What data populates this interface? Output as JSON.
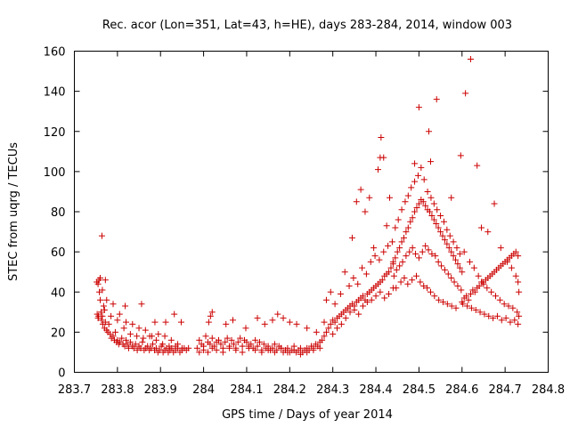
{
  "chart_data": {
    "type": "scatter",
    "title": "Rec. acor (Lon=351, Lat=43, h=HE), days 283-284, 2014, window 003",
    "xlabel": "GPS time / Days of year 2014",
    "ylabel": "STEC from uqrg / TECUs",
    "xlim": [
      283.7,
      284.8
    ],
    "ylim": [
      0,
      160
    ],
    "x_ticks": [
      283.7,
      283.8,
      283.9,
      284,
      284.1,
      284.2,
      284.3,
      284.4,
      284.5,
      284.6,
      284.7,
      284.8
    ],
    "x_tick_labels": [
      "283.7",
      "283.8",
      "283.9",
      "284",
      "284.1",
      "284.2",
      "284.3",
      "284.4",
      "284.5",
      "284.6",
      "284.7",
      "284.8"
    ],
    "y_ticks": [
      0,
      20,
      40,
      60,
      80,
      100,
      120,
      140,
      160
    ],
    "y_tick_labels": [
      "0",
      "20",
      "40",
      "60",
      "80",
      "100",
      "120",
      "140",
      "160"
    ],
    "grid": false,
    "marker": "plus",
    "marker_color": "#cc0000",
    "series": [
      {
        "x": [
          283.752,
          283.753,
          283.755,
          283.756,
          283.757,
          283.76,
          283.762,
          283.763,
          283.765,
          283.766,
          283.768,
          283.77,
          283.772,
          283.775,
          283.778,
          283.78,
          283.783,
          283.786,
          283.79,
          283.793,
          283.795,
          283.798,
          283.8,
          283.803,
          283.806,
          283.81,
          283.813,
          283.817,
          283.82,
          283.823,
          283.826,
          283.83,
          283.834,
          283.838,
          283.842,
          283.846,
          283.85,
          283.854,
          283.858,
          283.862,
          283.866,
          283.87,
          283.874,
          283.878,
          283.882,
          283.886,
          283.89,
          283.894,
          283.898,
          283.902,
          283.906,
          283.91,
          283.914,
          283.918,
          283.922,
          283.926,
          283.93,
          283.935,
          283.94,
          283.945,
          283.95,
          283.955,
          283.96,
          283.965,
          283.755,
          283.765,
          283.775,
          283.79,
          283.805,
          283.82,
          283.835,
          283.85,
          283.865,
          283.88,
          283.895,
          283.91,
          283.925,
          283.94,
          283.76,
          283.77,
          283.785,
          283.8,
          283.815,
          283.83,
          283.845,
          283.86,
          283.875,
          283.89,
          283.905,
          283.92,
          283.935,
          283.95,
          283.764,
          283.772,
          283.758,
          283.818,
          283.856,
          283.887,
          283.912,
          283.932,
          283.948,
          283.985,
          283.99,
          283.995,
          284.0,
          284.005,
          284.01,
          284.015,
          284.02,
          284.025,
          284.03,
          284.035,
          284.04,
          284.045,
          284.05,
          284.055,
          284.06,
          284.065,
          284.07,
          284.075,
          284.08,
          284.085,
          284.09,
          284.095,
          284.1,
          284.105,
          284.11,
          284.115,
          284.12,
          284.125,
          284.13,
          284.135,
          284.14,
          284.145,
          284.15,
          284.155,
          284.16,
          284.165,
          284.17,
          284.175,
          284.18,
          284.185,
          284.19,
          284.195,
          284.2,
          284.205,
          284.21,
          284.215,
          284.22,
          284.225,
          284.23,
          284.235,
          284.24,
          284.245,
          284.25,
          284.255,
          284.26,
          284.265,
          284.27,
          283.99,
          284.0,
          284.01,
          284.02,
          284.03,
          284.045,
          284.06,
          284.075,
          284.09,
          284.105,
          284.12,
          284.135,
          284.15,
          284.165,
          284.18,
          284.195,
          284.21,
          284.225,
          284.24,
          284.255,
          284.27,
          284.012,
          284.016,
          284.02,
          284.052,
          284.068,
          284.098,
          284.125,
          284.142,
          284.16,
          284.172,
          284.185,
          284.2,
          284.216,
          284.24,
          284.262,
          284.28,
          284.275,
          284.28,
          284.285,
          284.29,
          284.295,
          284.3,
          284.305,
          284.31,
          284.315,
          284.32,
          284.325,
          284.33,
          284.335,
          284.34,
          284.345,
          284.35,
          284.355,
          284.36,
          284.365,
          284.37,
          284.375,
          284.38,
          284.385,
          284.39,
          284.395,
          284.4,
          284.405,
          284.41,
          284.415,
          284.42,
          284.425,
          284.43,
          284.435,
          284.44,
          284.3,
          284.31,
          284.32,
          284.33,
          284.34,
          284.35,
          284.36,
          284.37,
          284.38,
          284.39,
          284.4,
          284.41,
          284.42,
          284.43,
          284.44,
          284.285,
          284.295,
          284.305,
          284.318,
          284.328,
          284.338,
          284.348,
          284.358,
          284.368,
          284.378,
          284.388,
          284.398,
          284.408,
          284.418,
          284.428,
          284.438,
          284.345,
          284.355,
          284.365,
          284.375,
          284.385,
          284.395,
          284.405,
          284.41,
          284.412,
          284.418,
          284.425,
          284.432,
          284.44,
          284.445,
          284.45,
          284.455,
          284.46,
          284.465,
          284.47,
          284.475,
          284.48,
          284.485,
          284.49,
          284.495,
          284.5,
          284.505,
          284.51,
          284.515,
          284.52,
          284.525,
          284.53,
          284.535,
          284.54,
          284.545,
          284.55,
          284.555,
          284.56,
          284.565,
          284.57,
          284.575,
          284.58,
          284.585,
          284.59,
          284.595,
          284.6,
          284.442,
          284.448,
          284.455,
          284.462,
          284.47,
          284.478,
          284.485,
          284.492,
          284.5,
          284.508,
          284.515,
          284.522,
          284.53,
          284.538,
          284.545,
          284.552,
          284.56,
          284.568,
          284.575,
          284.582,
          284.59,
          284.598,
          284.445,
          284.452,
          284.46,
          284.468,
          284.475,
          284.482,
          284.49,
          284.498,
          284.505,
          284.512,
          284.52,
          284.528,
          284.535,
          284.542,
          284.55,
          284.558,
          284.565,
          284.572,
          284.58,
          284.588,
          284.595,
          284.447,
          284.458,
          284.466,
          284.474,
          284.484,
          284.494,
          284.503,
          284.511,
          284.519,
          284.527,
          284.536,
          284.546,
          284.556,
          284.566,
          284.576,
          284.586,
          284.49,
          284.5,
          284.523,
          284.527,
          284.541,
          284.575,
          284.597,
          284.608,
          284.62,
          284.635,
          284.6,
          284.605,
          284.61,
          284.615,
          284.62,
          284.625,
          284.63,
          284.635,
          284.64,
          284.645,
          284.65,
          284.655,
          284.66,
          284.665,
          284.67,
          284.675,
          284.68,
          284.685,
          284.69,
          284.695,
          284.7,
          284.705,
          284.71,
          284.715,
          284.72,
          284.725,
          284.73,
          284.602,
          284.612,
          284.622,
          284.632,
          284.642,
          284.652,
          284.662,
          284.672,
          284.682,
          284.692,
          284.702,
          284.712,
          284.722,
          284.73,
          284.605,
          284.618,
          284.628,
          284.638,
          284.648,
          284.658,
          284.668,
          284.678,
          284.688,
          284.698,
          284.708,
          284.718,
          284.728,
          284.732,
          284.645,
          284.66,
          284.675,
          284.69,
          284.705,
          284.715,
          284.725,
          284.73,
          284.732
        ],
        "y": [
          45,
          29,
          27,
          28,
          46,
          47,
          30,
          26,
          28,
          24,
          33,
          22,
          25,
          21,
          20,
          24,
          19,
          17,
          18,
          16,
          20,
          15,
          16,
          14,
          15,
          17,
          14,
          13,
          16,
          14,
          12,
          15,
          13,
          12,
          14,
          11,
          13,
          12,
          15,
          11,
          12,
          13,
          11,
          12,
          14,
          11,
          12,
          10,
          11,
          13,
          10,
          11,
          12,
          10,
          11,
          12,
          10,
          11,
          12,
          10,
          11,
          12,
          11,
          12,
          44,
          41,
          36,
          34,
          29,
          25,
          24,
          22,
          21,
          18,
          19,
          18,
          16,
          14,
          36,
          31,
          28,
          26,
          22,
          19,
          18,
          17,
          18,
          16,
          14,
          13,
          13,
          12,
          68,
          46,
          40,
          33,
          34,
          25,
          25,
          29,
          25,
          12,
          16,
          14,
          13,
          18,
          15,
          14,
          17,
          13,
          15,
          16,
          14,
          12,
          15,
          17,
          13,
          16,
          14,
          12,
          15,
          17,
          13,
          16,
          15,
          13,
          14,
          12,
          16,
          13,
          15,
          11,
          14,
          12,
          13,
          11,
          12,
          14,
          11,
          13,
          12,
          10,
          11,
          12,
          10,
          11,
          13,
          10,
          11,
          12,
          10,
          11,
          12,
          11,
          13,
          12,
          14,
          13,
          15,
          10,
          11,
          10,
          12,
          11,
          10,
          12,
          11,
          10,
          12,
          11,
          10,
          11,
          10,
          12,
          10,
          11,
          9,
          10,
          11,
          12,
          25,
          28,
          30,
          24,
          26,
          22,
          27,
          24,
          26,
          29,
          27,
          25,
          24,
          22,
          20,
          25,
          16,
          18,
          20,
          22,
          24,
          26,
          25,
          27,
          28,
          29,
          30,
          31,
          32,
          33,
          34,
          33,
          35,
          36,
          37,
          38,
          36,
          39,
          40,
          41,
          42,
          43,
          44,
          45,
          46,
          48,
          49,
          50,
          52,
          54,
          19,
          22,
          24,
          27,
          30,
          31,
          29,
          33,
          35,
          36,
          38,
          40,
          37,
          39,
          42,
          36,
          40,
          34,
          39,
          50,
          43,
          47,
          44,
          52,
          49,
          55,
          58,
          56,
          60,
          63,
          65,
          67,
          85,
          91,
          80,
          87,
          62,
          101,
          107,
          117,
          107,
          73,
          87,
          55,
          57,
          60,
          62,
          65,
          67,
          70,
          72,
          75,
          77,
          80,
          82,
          84,
          86,
          85,
          83,
          81,
          80,
          78,
          76,
          74,
          72,
          70,
          68,
          66,
          64,
          62,
          60,
          58,
          56,
          54,
          52,
          50,
          48,
          51,
          53,
          55,
          58,
          60,
          62,
          59,
          57,
          60,
          63,
          61,
          59,
          58,
          55,
          53,
          51,
          49,
          47,
          45,
          43,
          41,
          72,
          76,
          81,
          85,
          88,
          92,
          95,
          98,
          102,
          96,
          90,
          87,
          84,
          81,
          78,
          75,
          71,
          68,
          65,
          62,
          59,
          42,
          45,
          47,
          44,
          46,
          48,
          45,
          43,
          42,
          40,
          38,
          36,
          35,
          34,
          33,
          32,
          104,
          132,
          120,
          105,
          136,
          87,
          108,
          139,
          156,
          103,
          35,
          37,
          38,
          36,
          39,
          41,
          40,
          42,
          43,
          45,
          44,
          46,
          47,
          48,
          49,
          50,
          51,
          52,
          53,
          54,
          55,
          56,
          57,
          58,
          59,
          60,
          58,
          34,
          33,
          32,
          31,
          30,
          29,
          28,
          27,
          28,
          26,
          27,
          25,
          26,
          24,
          60,
          55,
          52,
          48,
          45,
          42,
          40,
          38,
          36,
          34,
          33,
          32,
          30,
          28,
          72,
          70,
          84,
          62,
          55,
          52,
          48,
          45,
          40
        ]
      }
    ]
  }
}
